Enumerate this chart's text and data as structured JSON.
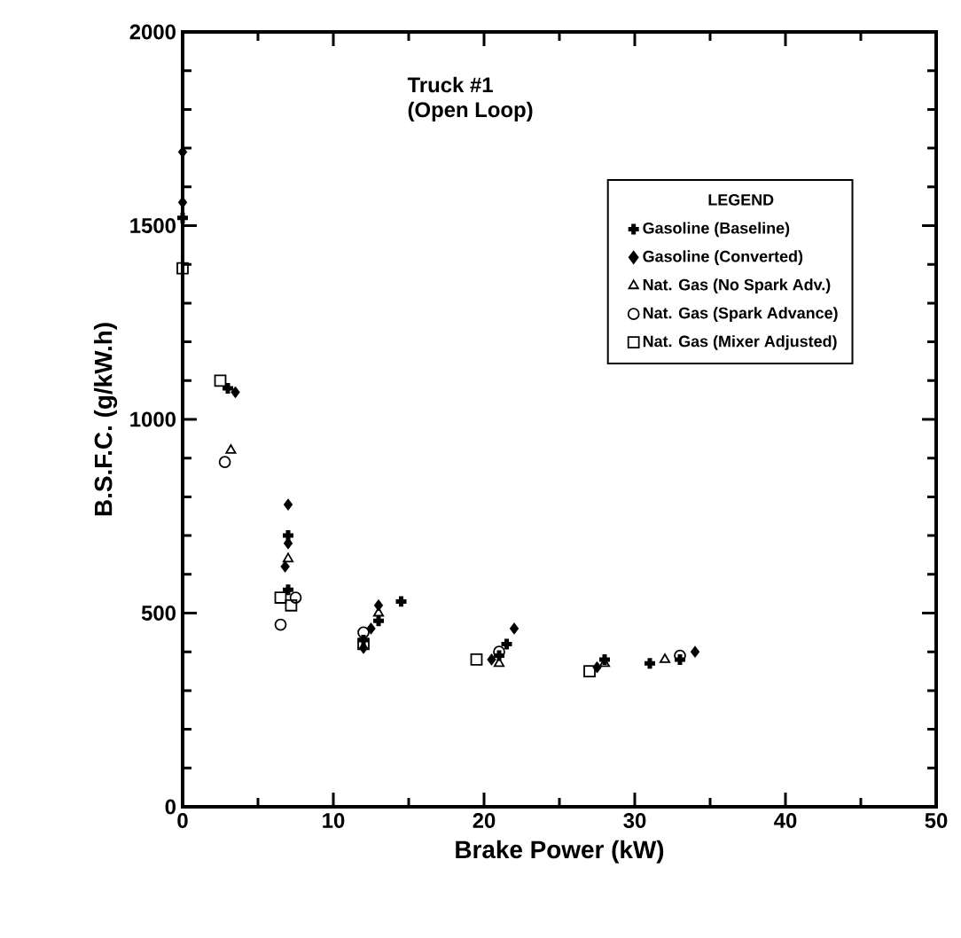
{
  "chart_data": {
    "type": "scatter",
    "title": "Truck #1",
    "subtitle": "(Open Loop)",
    "xlabel": "Brake Power (kW)",
    "ylabel": "B.S.F.C. (g/kW.h)",
    "legend_title": "LEGEND",
    "xlim": [
      0,
      50
    ],
    "ylim": [
      0,
      2000
    ],
    "xticks": [
      0,
      10,
      20,
      30,
      40,
      50
    ],
    "yticks": [
      0,
      500,
      1000,
      1500,
      2000
    ],
    "grid": false,
    "legend": "top right",
    "series": [
      {
        "name": "Gasoline (Baseline)",
        "color": "#000000",
        "marker": "cross",
        "x": [
          0,
          3,
          7,
          7,
          12,
          13,
          14.5,
          21,
          21.5,
          28,
          31,
          33
        ],
        "values": [
          1520,
          1080,
          700,
          560,
          430,
          480,
          530,
          390,
          420,
          380,
          370,
          380
        ]
      },
      {
        "name": "Gasoline (Converted)",
        "color": "#000000",
        "marker": "diamond",
        "x": [
          0,
          0,
          3.5,
          7,
          7,
          6.8,
          12,
          12.5,
          13,
          20.5,
          22,
          27.5,
          34
        ],
        "values": [
          1690,
          1560,
          1070,
          780,
          680,
          620,
          410,
          460,
          520,
          380,
          460,
          360,
          400
        ]
      },
      {
        "name": "Nat. Gas (No Spark Adv.)",
        "color": "#000000",
        "marker": "triangle",
        "x": [
          3.2,
          7,
          13,
          21,
          28,
          32
        ],
        "values": [
          920,
          640,
          500,
          370,
          370,
          380
        ]
      },
      {
        "name": "Nat. Gas (Spark Advance)",
        "color": "#000000",
        "marker": "circle",
        "x": [
          2.8,
          6.5,
          7.5,
          12,
          21,
          33
        ],
        "values": [
          890,
          470,
          540,
          450,
          400,
          390
        ]
      },
      {
        "name": "Nat. Gas (Mixer Adjusted)",
        "color": "#000000",
        "marker": "square",
        "x": [
          0,
          2.5,
          6.5,
          7.2,
          12,
          19.5,
          27
        ],
        "values": [
          1390,
          1100,
          540,
          520,
          420,
          380,
          350
        ]
      }
    ]
  }
}
